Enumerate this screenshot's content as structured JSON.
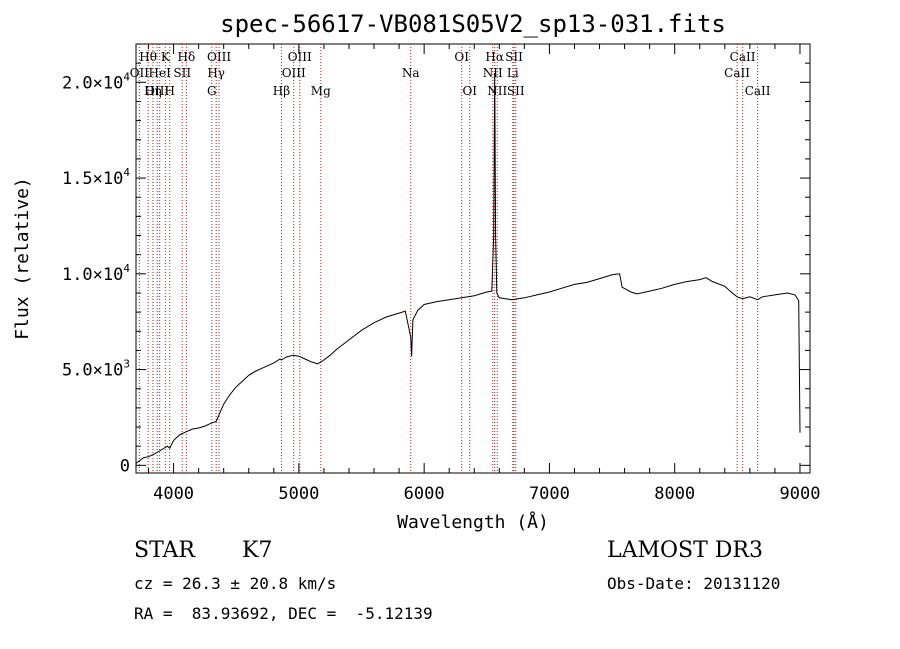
{
  "chart_data": {
    "type": "line",
    "title": "spec-56617-VB081S05V2_sp13-031.fits",
    "xlabel": "Wavelength (Å)",
    "ylabel": "Flux (relative)",
    "xlim": [
      3700,
      9080
    ],
    "ylim": [
      -400,
      22000
    ],
    "x_ticks": [
      {
        "value": 4000,
        "label": "4000"
      },
      {
        "value": 5000,
        "label": "5000"
      },
      {
        "value": 6000,
        "label": "6000"
      },
      {
        "value": 7000,
        "label": "7000"
      },
      {
        "value": 8000,
        "label": "8000"
      },
      {
        "value": 9000,
        "label": "9000"
      }
    ],
    "y_ticks": [
      {
        "value": 0,
        "label": "0",
        "exp": ""
      },
      {
        "value": 5000,
        "label": "5.0×10",
        "exp": "3"
      },
      {
        "value": 10000,
        "label": "1.0×10",
        "exp": "4"
      },
      {
        "value": 15000,
        "label": "1.5×10",
        "exp": "4"
      },
      {
        "value": 20000,
        "label": "2.0×10",
        "exp": "4"
      }
    ],
    "series": [
      {
        "name": "spectrum",
        "color": "#000000",
        "points": [
          [
            3700,
            100
          ],
          [
            3760,
            400
          ],
          [
            3800,
            450
          ],
          [
            3850,
            600
          ],
          [
            3900,
            800
          ],
          [
            3950,
            1000
          ],
          [
            3970,
            900
          ],
          [
            4000,
            1300
          ],
          [
            4050,
            1600
          ],
          [
            4100,
            1750
          ],
          [
            4150,
            1900
          ],
          [
            4200,
            1950
          ],
          [
            4250,
            2050
          ],
          [
            4300,
            2200
          ],
          [
            4340,
            2300
          ],
          [
            4400,
            3200
          ],
          [
            4450,
            3700
          ],
          [
            4500,
            4100
          ],
          [
            4550,
            4400
          ],
          [
            4600,
            4700
          ],
          [
            4650,
            4900
          ],
          [
            4700,
            5050
          ],
          [
            4750,
            5200
          ],
          [
            4800,
            5350
          ],
          [
            4850,
            5550
          ],
          [
            4860,
            5500
          ],
          [
            4900,
            5650
          ],
          [
            4950,
            5750
          ],
          [
            5000,
            5700
          ],
          [
            5050,
            5550
          ],
          [
            5100,
            5400
          ],
          [
            5150,
            5300
          ],
          [
            5200,
            5500
          ],
          [
            5250,
            5750
          ],
          [
            5300,
            6050
          ],
          [
            5400,
            6550
          ],
          [
            5500,
            7050
          ],
          [
            5600,
            7450
          ],
          [
            5700,
            7750
          ],
          [
            5800,
            7950
          ],
          [
            5850,
            8050
          ],
          [
            5893,
            6700
          ],
          [
            5900,
            5700
          ],
          [
            5910,
            7600
          ],
          [
            5950,
            8100
          ],
          [
            6000,
            8400
          ],
          [
            6100,
            8550
          ],
          [
            6200,
            8650
          ],
          [
            6300,
            8750
          ],
          [
            6400,
            8850
          ],
          [
            6450,
            8950
          ],
          [
            6500,
            9050
          ],
          [
            6540,
            9100
          ],
          [
            6555,
            12000
          ],
          [
            6563,
            20500
          ],
          [
            6570,
            12000
          ],
          [
            6580,
            9000
          ],
          [
            6600,
            8750
          ],
          [
            6700,
            8650
          ],
          [
            6800,
            8750
          ],
          [
            6900,
            8900
          ],
          [
            7000,
            9050
          ],
          [
            7100,
            9250
          ],
          [
            7200,
            9450
          ],
          [
            7300,
            9550
          ],
          [
            7400,
            9750
          ],
          [
            7500,
            9950
          ],
          [
            7560,
            10000
          ],
          [
            7580,
            9300
          ],
          [
            7650,
            9050
          ],
          [
            7700,
            8950
          ],
          [
            7800,
            9100
          ],
          [
            7900,
            9250
          ],
          [
            8000,
            9450
          ],
          [
            8100,
            9600
          ],
          [
            8200,
            9700
          ],
          [
            8250,
            9800
          ],
          [
            8300,
            9600
          ],
          [
            8400,
            9350
          ],
          [
            8450,
            9050
          ],
          [
            8498,
            8800
          ],
          [
            8542,
            8700
          ],
          [
            8600,
            8800
          ],
          [
            8662,
            8650
          ],
          [
            8700,
            8800
          ],
          [
            8800,
            8900
          ],
          [
            8900,
            9000
          ],
          [
            8960,
            8900
          ],
          [
            8990,
            8600
          ],
          [
            9000,
            1700
          ]
        ]
      }
    ],
    "lines": [
      {
        "name": "Hθ",
        "x": 3797,
        "row": 0
      },
      {
        "name": "OII",
        "x": 3727,
        "row": 1
      },
      {
        "name": "OIII",
        "x": 3869,
        "row": 2
      },
      {
        "name": "K",
        "x": 3934,
        "row": 0
      },
      {
        "name": "HeI",
        "x": 3889,
        "row": 1
      },
      {
        "name": "Hη",
        "x": 3835,
        "row": 2
      },
      {
        "name": "SII",
        "x": 4069,
        "row": 1
      },
      {
        "name": "H",
        "x": 3969,
        "row": 2
      },
      {
        "name": "Hδ",
        "x": 4102,
        "row": 0
      },
      {
        "name": "OIII",
        "x": 4363,
        "row": 0
      },
      {
        "name": "Hγ",
        "x": 4340,
        "row": 1
      },
      {
        "name": "G",
        "x": 4305,
        "row": 2
      },
      {
        "name": "OIII",
        "x": 5007,
        "row": 0
      },
      {
        "name": "OIII",
        "x": 4959,
        "row": 1
      },
      {
        "name": "Hβ",
        "x": 4861,
        "row": 2
      },
      {
        "name": "Mg",
        "x": 5175,
        "row": 2
      },
      {
        "name": "Na",
        "x": 5893,
        "row": 1
      },
      {
        "name": "OI",
        "x": 6300,
        "row": 0
      },
      {
        "name": "OI",
        "x": 6364,
        "row": 2
      },
      {
        "name": "Hα",
        "x": 6563,
        "row": 0
      },
      {
        "name": "NII",
        "x": 6548,
        "row": 1
      },
      {
        "name": "NII",
        "x": 6584,
        "row": 2
      },
      {
        "name": "SII",
        "x": 6717,
        "row": 0
      },
      {
        "name": "Li",
        "x": 6708,
        "row": 1
      },
      {
        "name": "SII",
        "x": 6731,
        "row": 2
      },
      {
        "name": "CaII",
        "x": 8542,
        "row": 0
      },
      {
        "name": "CaII",
        "x": 8498,
        "row": 1
      },
      {
        "name": "CaII",
        "x": 8662,
        "row": 2
      }
    ]
  },
  "info": {
    "class": "STAR",
    "subclass": "K7",
    "survey": "LAMOST DR3",
    "cz": "cz = 26.3 ± 20.8 km/s",
    "obs_date": "Obs-Date: 20131120",
    "radec": "RA =  83.93692, DEC =  -5.12139"
  }
}
